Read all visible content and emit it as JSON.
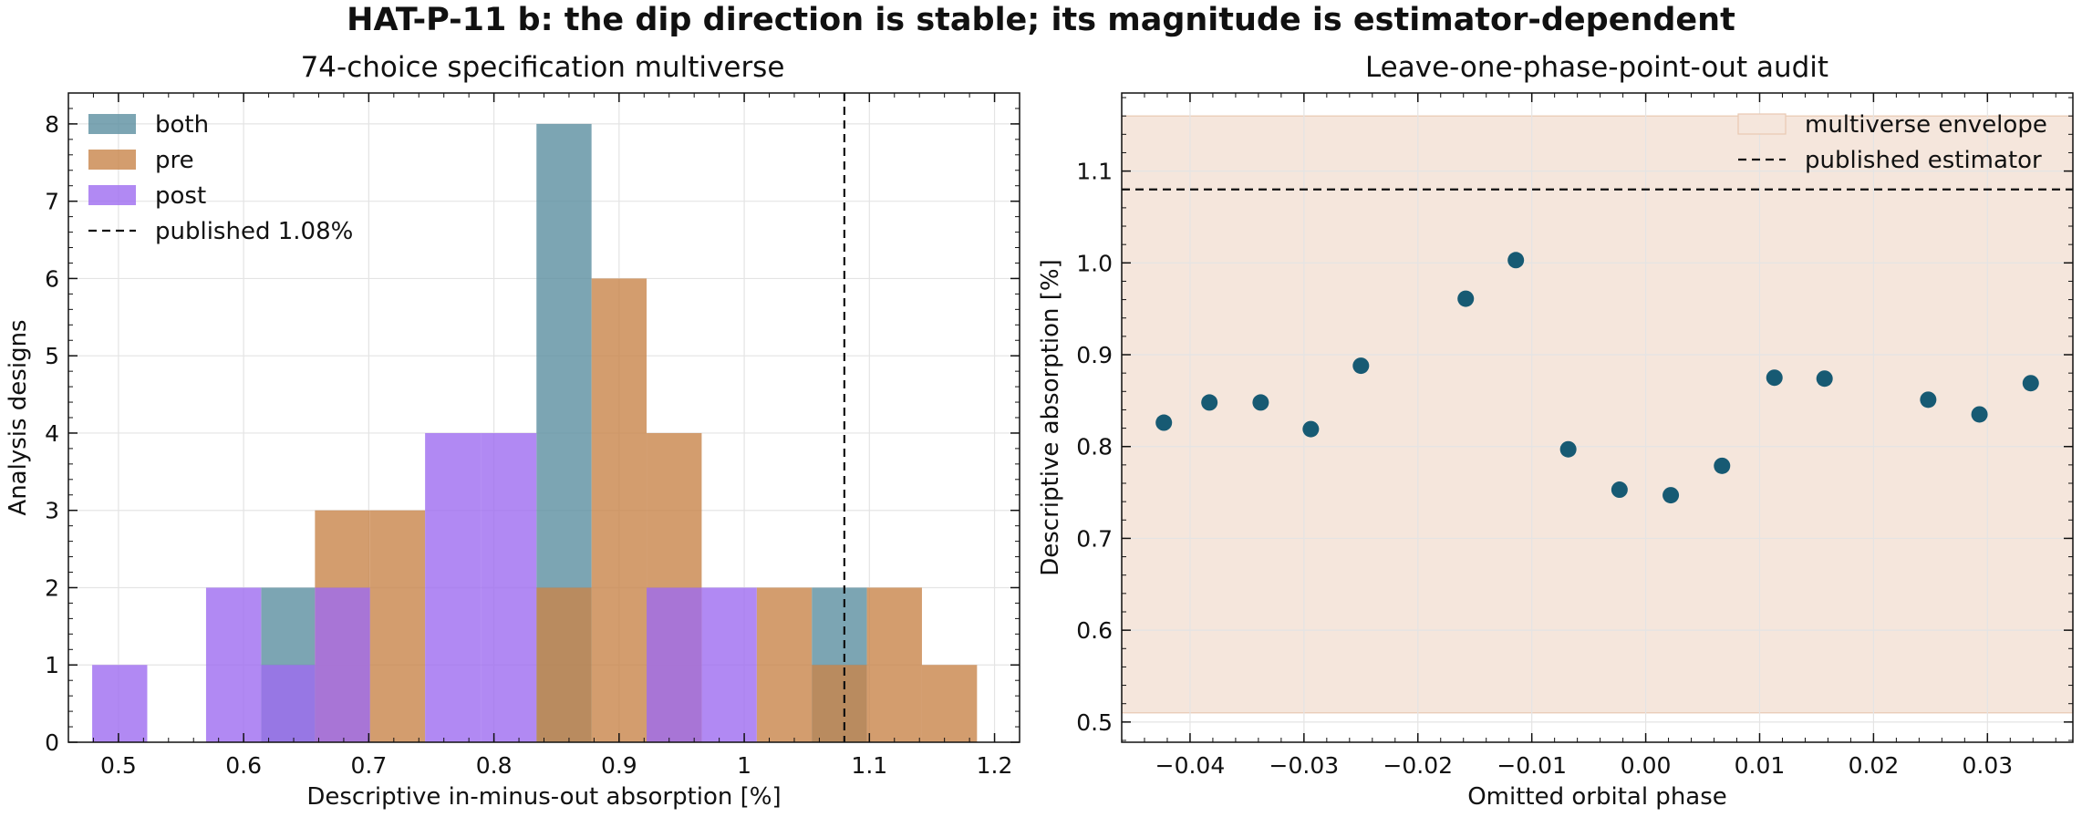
{
  "figure_title": "HAT-P-11 b: the dip direction is stable; its magnitude is estimator-dependent",
  "chart_data": [
    {
      "type": "bar",
      "subtype": "histogram",
      "title": "74-choice specification multiverse",
      "xlabel": "Descriptive in-minus-out absorption [%]",
      "ylabel": "Analysis designs",
      "xlim": [
        0.46,
        1.22
      ],
      "ylim": [
        0,
        8.4
      ],
      "xticks": [
        0.5,
        0.6,
        0.7,
        0.8,
        0.9,
        1.0,
        1.1,
        1.2
      ],
      "yticks": [
        0,
        1,
        2,
        3,
        4,
        5,
        6,
        7,
        8
      ],
      "grid": true,
      "legend_position": "top-left",
      "published_value": 1.08,
      "series": [
        {
          "name": "both",
          "color": "#5b8fa0",
          "bins": [
            {
              "x0": 0.614,
              "x1": 0.657,
              "count": 2
            },
            {
              "x0": 0.834,
              "x1": 0.878,
              "count": 8
            },
            {
              "x0": 1.054,
              "x1": 1.098,
              "count": 2
            }
          ]
        },
        {
          "name": "pre",
          "color": "#c8844a",
          "bins": [
            {
              "x0": 0.657,
              "x1": 0.701,
              "count": 3
            },
            {
              "x0": 0.701,
              "x1": 0.745,
              "count": 3
            },
            {
              "x0": 0.834,
              "x1": 0.878,
              "count": 2
            },
            {
              "x0": 0.878,
              "x1": 0.922,
              "count": 6
            },
            {
              "x0": 0.922,
              "x1": 0.966,
              "count": 4
            },
            {
              "x0": 1.01,
              "x1": 1.054,
              "count": 2
            },
            {
              "x0": 1.054,
              "x1": 1.098,
              "count": 1
            },
            {
              "x0": 1.098,
              "x1": 1.142,
              "count": 2
            },
            {
              "x0": 1.142,
              "x1": 1.186,
              "count": 1
            }
          ]
        },
        {
          "name": "post",
          "color": "#9d6bf0",
          "bins": [
            {
              "x0": 0.479,
              "x1": 0.523,
              "count": 1
            },
            {
              "x0": 0.57,
              "x1": 0.614,
              "count": 2
            },
            {
              "x0": 0.614,
              "x1": 0.657,
              "count": 1
            },
            {
              "x0": 0.657,
              "x1": 0.701,
              "count": 2
            },
            {
              "x0": 0.745,
              "x1": 0.79,
              "count": 4
            },
            {
              "x0": 0.79,
              "x1": 0.834,
              "count": 4
            },
            {
              "x0": 0.922,
              "x1": 0.966,
              "count": 2
            },
            {
              "x0": 0.966,
              "x1": 1.01,
              "count": 2
            }
          ]
        }
      ],
      "published_label": "published 1.08%"
    },
    {
      "type": "scatter",
      "title": "Leave-one-phase-point-out audit",
      "xlabel": "Omitted orbital phase",
      "ylabel": "Descriptive absorption [%]",
      "xlim": [
        -0.046,
        0.0375
      ],
      "ylim": [
        0.478,
        1.185
      ],
      "xticks": [
        -0.04,
        -0.03,
        -0.02,
        -0.01,
        0.0,
        0.01,
        0.02,
        0.03
      ],
      "xtick_labels": [
        "−0.04",
        "−0.03",
        "−0.02",
        "−0.01",
        "0.00",
        "0.01",
        "0.02",
        "0.03"
      ],
      "yticks": [
        0.5,
        0.6,
        0.7,
        0.8,
        0.9,
        1.0,
        1.1
      ],
      "ytick_labels": [
        "0.5",
        "0.6",
        "0.7",
        "0.8",
        "0.9",
        "1.0",
        "1.1"
      ],
      "grid": true,
      "legend_position": "top-right",
      "point_color": "#175a73",
      "envelope": {
        "name": "multiverse envelope",
        "ymin": 0.51,
        "ymax": 1.16,
        "color": "#f5e6dc",
        "edge": "#e8c9b2"
      },
      "published": {
        "name": "published estimator",
        "value": 1.08
      },
      "x": [
        -0.0423,
        -0.0383,
        -0.0338,
        -0.0294,
        -0.025,
        -0.0158,
        -0.0114,
        -0.0068,
        -0.0023,
        0.0022,
        0.0067,
        0.0113,
        0.0157,
        0.0248,
        0.0293,
        0.0338
      ],
      "y": [
        0.826,
        0.848,
        0.848,
        0.819,
        0.888,
        0.961,
        1.003,
        0.797,
        0.753,
        0.747,
        0.779,
        0.875,
        0.874,
        0.851,
        0.835,
        0.869
      ]
    }
  ]
}
